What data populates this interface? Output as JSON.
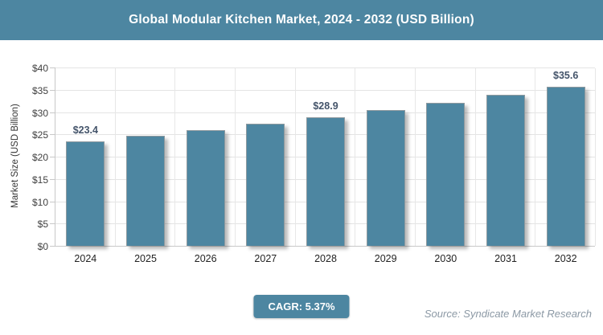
{
  "header": {
    "title": "Global Modular Kitchen Market, 2024 - 2032 (USD Billion)"
  },
  "chart_data": {
    "type": "bar",
    "title": "Global Modular Kitchen Market, 2024 - 2032 (USD Billion)",
    "categories": [
      "2024",
      "2025",
      "2026",
      "2027",
      "2028",
      "2029",
      "2030",
      "2031",
      "2032"
    ],
    "values": [
      23.4,
      24.7,
      26.0,
      27.4,
      28.9,
      30.4,
      32.0,
      33.8,
      35.6
    ],
    "bar_labels": [
      "$23.4",
      "",
      "",
      "",
      "$28.9",
      "",
      "",
      "",
      "$35.6"
    ],
    "xlabel": "",
    "ylabel": "Market Size (USD Billion)",
    "ylim": [
      0,
      40
    ],
    "ytick_step": 5,
    "ytick_labels": [
      "$0",
      "$5",
      "$10",
      "$15",
      "$20",
      "$25",
      "$30",
      "$35",
      "$40"
    ],
    "grid": true,
    "legend": "none",
    "bar_color": "#4d86a1"
  },
  "footer": {
    "cagr_label": "CAGR: 5.37%",
    "source": "Source: Syndicate Market Research"
  },
  "colors": {
    "accent": "#4d86a1",
    "bar_label_text": "#44546a",
    "source_text": "#8c99a5",
    "grid_line": "#e4e4e4",
    "axis_line": "#c8c8c8"
  }
}
